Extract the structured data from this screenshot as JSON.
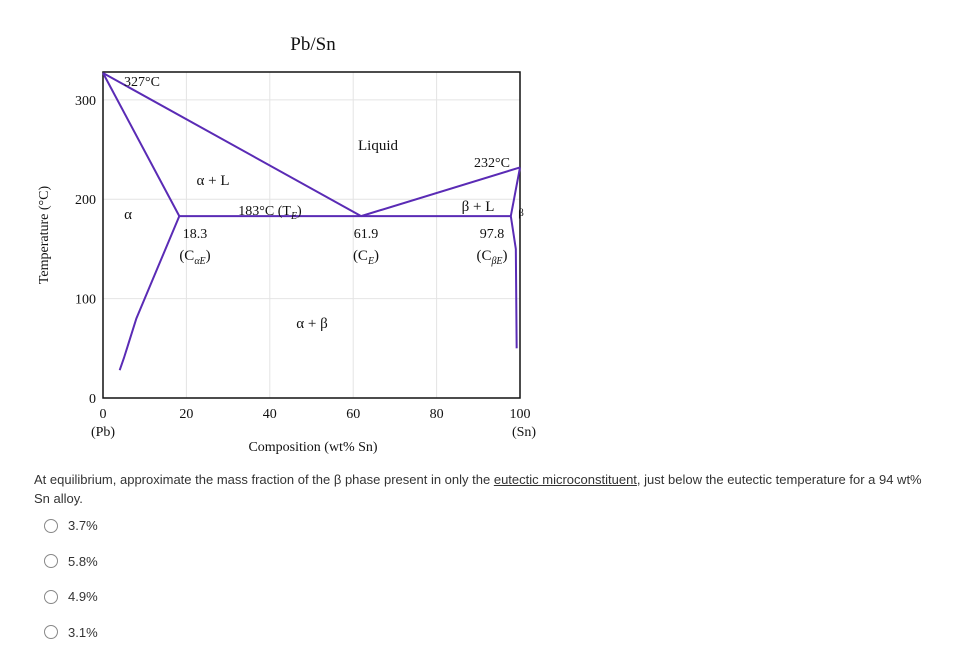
{
  "chart_data": {
    "type": "line",
    "title": "Pb/Sn",
    "x_label": "Composition (wt% Sn)",
    "y_label": "Temperature (°C)",
    "xlim": [
      0,
      100
    ],
    "ylim": [
      0,
      328
    ],
    "xticks": [
      0,
      20,
      40,
      60,
      80,
      100
    ],
    "yticks": [
      0,
      100,
      200,
      300
    ],
    "grid": true,
    "end_labels": [
      "(Pb)",
      "(Sn)"
    ],
    "series": [
      {
        "color": "#5a2bb5",
        "x": [
          0,
          61.9
        ],
        "y": [
          327,
          183
        ]
      },
      {
        "color": "#5a2bb5",
        "x": [
          61.9,
          100
        ],
        "y": [
          183,
          232
        ]
      },
      {
        "color": "#5a2bb5",
        "x": [
          18.3,
          97.8
        ],
        "y": [
          183,
          183
        ]
      },
      {
        "color": "#5a2bb5",
        "x": [
          0,
          18.3
        ],
        "y": [
          327,
          183
        ]
      },
      {
        "color": "#5a2bb5",
        "x": [
          18.3,
          13,
          8,
          5,
          4
        ],
        "y": [
          183,
          130,
          80,
          40,
          28
        ]
      },
      {
        "color": "#5a2bb5",
        "x": [
          97.8,
          99,
          99.2
        ],
        "y": [
          183,
          150,
          50
        ]
      },
      {
        "color": "#5a2bb5",
        "x": [
          97.8,
          100
        ],
        "y": [
          183,
          232
        ]
      }
    ],
    "annotations": [
      [
        "327°C"
      ],
      [
        "Liquid"
      ],
      [
        "232°C"
      ],
      [
        "α + L"
      ],
      [
        "183°C (T",
        "E",
        ")"
      ],
      [
        "α"
      ],
      [
        "β + L"
      ],
      [
        "β"
      ],
      [
        "18.3"
      ],
      [
        "(C",
        "αE",
        ")"
      ],
      [
        "61.9"
      ],
      [
        "(C",
        "E",
        ")"
      ],
      [
        "97.8"
      ],
      [
        "(C",
        "βE",
        ")"
      ],
      [
        "α + β"
      ]
    ]
  },
  "question": {
    "parts": [
      "At equilibrium, approximate the mass fraction of the β phase present in only the ",
      "eutectic microconstituent",
      ", just below the eutectic temperature for a 94 wt% Sn alloy."
    ],
    "options": [
      "3.7%",
      "5.8%",
      "4.9%",
      "3.1%"
    ]
  }
}
